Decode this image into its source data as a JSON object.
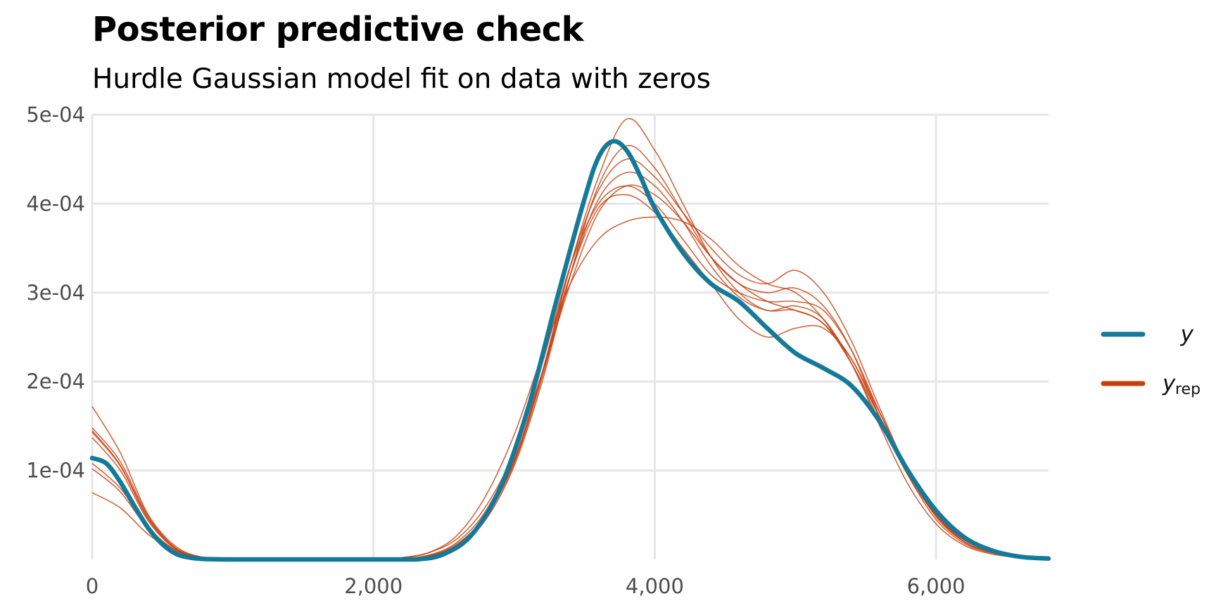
{
  "title": "Posterior predictive check",
  "subtitle": "Hurdle Gaussian model fit on data with zeros",
  "colors": {
    "y": "#157a99",
    "yrep": "#c5400f",
    "grid": "#e6e6e6",
    "tick_text": "#4d4d4d"
  },
  "legend": {
    "position": "right",
    "items": [
      {
        "label": "y",
        "subscript": "",
        "color": "#157a99"
      },
      {
        "label": "y",
        "subscript": "rep",
        "color": "#c5400f"
      }
    ]
  },
  "chart_data": {
    "type": "line",
    "title": "Posterior predictive check",
    "subtitle": "Hurdle Gaussian model fit on data with zeros",
    "xlabel": "",
    "ylabel": "",
    "xlim": [
      0,
      6800
    ],
    "ylim": [
      0,
      0.0005
    ],
    "grid": true,
    "x_ticks": [
      0,
      2000,
      4000,
      6000
    ],
    "x_tick_labels": [
      "0",
      "2,000",
      "4,000",
      "6,000"
    ],
    "y_ticks": [
      0.0001,
      0.0002,
      0.0003,
      0.0004,
      0.0005
    ],
    "y_tick_labels": [
      "1e-04",
      "2e-04",
      "3e-04",
      "4e-04",
      "5e-04"
    ],
    "series": [
      {
        "name": "y",
        "role": "observed",
        "x": [
          0,
          100,
          200,
          300,
          400,
          500,
          600,
          700,
          800,
          1000,
          1500,
          2000,
          2300,
          2500,
          2700,
          2900,
          3100,
          3300,
          3500,
          3600,
          3700,
          3800,
          3900,
          4000,
          4200,
          4400,
          4600,
          4800,
          5000,
          5200,
          5400,
          5600,
          5800,
          6000,
          6200,
          6400,
          6600,
          6800
        ],
        "y": [
          0.000114,
          0.000108,
          8.7e-05,
          6e-05,
          3.5e-05,
          1.7e-05,
          6e-06,
          2e-06,
          5e-07,
          0,
          0,
          0,
          0,
          6e-06,
          2.8e-05,
          8e-05,
          0.00017,
          0.00029,
          0.000405,
          0.000452,
          0.00047,
          0.00046,
          0.00043,
          0.000395,
          0.000345,
          0.00031,
          0.00029,
          0.00026,
          0.000232,
          0.000215,
          0.000195,
          0.000155,
          0.0001,
          5.5e-05,
          2.5e-05,
          1e-05,
          3e-06,
          1e-06
        ]
      },
      {
        "name": "",
        "role": "yrep",
        "x": [
          0,
          200,
          400,
          600,
          800,
          1000,
          2000,
          2200,
          2400,
          2600,
          2800,
          3000,
          3200,
          3400,
          3600,
          3800,
          4000,
          4200,
          4400,
          4600,
          4800,
          5000,
          5200,
          5400,
          5600,
          5800,
          6000,
          6200,
          6400,
          6600,
          6800
        ],
        "y": [
          0.000172,
          0.00012,
          5e-05,
          1.4e-05,
          2e-06,
          0,
          0,
          2e-06,
          8e-06,
          2.4e-05,
          6e-05,
          0.00012,
          0.00021,
          0.00031,
          0.00039,
          0.00042,
          0.00041,
          0.00038,
          0.00034,
          0.00031,
          0.00029,
          0.00028,
          0.000265,
          0.00022,
          0.00016,
          0.0001,
          5e-05,
          2e-05,
          8e-06,
          3e-06,
          1e-06
        ]
      },
      {
        "name": "",
        "role": "yrep",
        "x": [
          0,
          200,
          400,
          600,
          800,
          1000,
          2000,
          2200,
          2400,
          2600,
          2800,
          3000,
          3200,
          3400,
          3600,
          3800,
          4000,
          4200,
          4400,
          4600,
          4800,
          5000,
          5200,
          5400,
          5600,
          5800,
          6000,
          6200,
          6400,
          6600,
          6800
        ],
        "y": [
          0.000148,
          0.00011,
          4.8e-05,
          1.2e-05,
          2e-06,
          0,
          0,
          1e-06,
          5e-06,
          1.8e-05,
          5e-05,
          0.00011,
          0.00021,
          0.00033,
          0.00043,
          0.000495,
          0.00046,
          0.0004,
          0.00034,
          0.0003,
          0.00028,
          0.000285,
          0.00027,
          0.00022,
          0.00015,
          8.5e-05,
          4e-05,
          1.6e-05,
          6e-06,
          2e-06,
          1e-06
        ]
      },
      {
        "name": "",
        "role": "yrep",
        "x": [
          0,
          200,
          400,
          600,
          800,
          1000,
          2000,
          2200,
          2400,
          2600,
          2800,
          3000,
          3200,
          3400,
          3600,
          3800,
          4000,
          4200,
          4400,
          4600,
          4800,
          5000,
          5200,
          5400,
          5600,
          5800,
          6000,
          6200,
          6400,
          6600,
          6800
        ],
        "y": [
          0.000143,
          0.000105,
          4.5e-05,
          1.2e-05,
          2e-06,
          0,
          0,
          1e-06,
          4e-06,
          1.5e-05,
          4.5e-05,
          0.000105,
          0.0002,
          0.00032,
          0.00042,
          0.000465,
          0.00044,
          0.00039,
          0.00034,
          0.00031,
          0.0003,
          0.000305,
          0.000285,
          0.000235,
          0.00016,
          9.5e-05,
          4.5e-05,
          1.8e-05,
          7e-06,
          2e-06,
          1e-06
        ]
      },
      {
        "name": "",
        "role": "yrep",
        "x": [
          0,
          200,
          400,
          600,
          800,
          1000,
          2000,
          2200,
          2400,
          2600,
          2800,
          3000,
          3200,
          3400,
          3600,
          3800,
          4000,
          4200,
          4400,
          4600,
          4800,
          5000,
          5200,
          5400,
          5600,
          5800,
          6000,
          6200,
          6400,
          6600,
          6800
        ],
        "y": [
          0.000137,
          0.0001,
          4.3e-05,
          1.1e-05,
          2e-06,
          0,
          0,
          1e-06,
          4e-06,
          1.6e-05,
          4.8e-05,
          0.00011,
          0.00021,
          0.00033,
          0.000415,
          0.00045,
          0.00043,
          0.00039,
          0.00035,
          0.00032,
          0.00031,
          0.000325,
          0.0003,
          0.000245,
          0.00017,
          0.0001,
          4.8e-05,
          2e-05,
          8e-06,
          3e-06,
          1e-06
        ]
      },
      {
        "name": "",
        "role": "yrep",
        "x": [
          0,
          200,
          400,
          600,
          800,
          1000,
          2000,
          2200,
          2400,
          2600,
          2800,
          3000,
          3200,
          3400,
          3600,
          3800,
          4000,
          4200,
          4400,
          4600,
          4800,
          5000,
          5200,
          5400,
          5600,
          5800,
          6000,
          6200,
          6400,
          6600,
          6800
        ],
        "y": [
          0.000108,
          8e-05,
          3.6e-05,
          1e-05,
          2e-06,
          0,
          0,
          1e-06,
          5e-06,
          2e-05,
          5.5e-05,
          0.00012,
          0.00022,
          0.00033,
          0.0004,
          0.00042,
          0.0004,
          0.00036,
          0.00032,
          0.0003,
          0.00029,
          0.00029,
          0.00028,
          0.000235,
          0.000165,
          0.0001,
          5e-05,
          2.2e-05,
          9e-06,
          3e-06,
          1e-06
        ]
      },
      {
        "name": "",
        "role": "yrep",
        "x": [
          0,
          200,
          400,
          600,
          800,
          1000,
          2000,
          2200,
          2400,
          2600,
          2800,
          3000,
          3200,
          3400,
          3600,
          3800,
          4000,
          4200,
          4400,
          4600,
          4800,
          5000,
          5200,
          5400,
          5600,
          5800,
          6000,
          6200,
          6400,
          6600,
          6800
        ],
        "y": [
          0.000102,
          7.6e-05,
          3.4e-05,
          1e-05,
          2e-06,
          0,
          0,
          1e-06,
          4e-06,
          1.7e-05,
          5e-05,
          0.000112,
          0.00021,
          0.00032,
          0.000395,
          0.00041,
          0.00039,
          0.00035,
          0.00031,
          0.00027,
          0.00025,
          0.00026,
          0.00026,
          0.000225,
          0.00016,
          0.0001,
          5e-05,
          2.2e-05,
          9e-06,
          3e-06,
          1e-06
        ]
      },
      {
        "name": "",
        "role": "yrep",
        "x": [
          0,
          200,
          400,
          600,
          800,
          1000,
          2000,
          2200,
          2400,
          2600,
          2800,
          3000,
          3200,
          3400,
          3600,
          3800,
          4000,
          4200,
          4400,
          4600,
          4800,
          5000,
          5200,
          5400,
          5600,
          5800,
          6000,
          6200,
          6400,
          6600,
          6800
        ],
        "y": [
          7.5e-05,
          5.8e-05,
          2.8e-05,
          9e-06,
          2e-06,
          0,
          0,
          2e-06,
          8e-06,
          2.8e-05,
          7.2e-05,
          0.00014,
          0.00023,
          0.00031,
          0.00036,
          0.00038,
          0.000385,
          0.00038,
          0.00036,
          0.00033,
          0.00031,
          0.0003,
          0.00027,
          0.00022,
          0.000155,
          9.5e-05,
          5e-05,
          2.4e-05,
          1e-05,
          4e-06,
          2e-06
        ]
      },
      {
        "name": "",
        "role": "yrep",
        "x": [
          0,
          200,
          400,
          600,
          800,
          1000,
          2000,
          2200,
          2400,
          2600,
          2800,
          3000,
          3200,
          3400,
          3600,
          3800,
          4000,
          4200,
          4400,
          4600,
          4800,
          5000,
          5200,
          5400,
          5600,
          5800,
          6000,
          6200,
          6400,
          6600,
          6800
        ],
        "y": [
          0.000145,
          0.000106,
          4.6e-05,
          1.2e-05,
          2e-06,
          0,
          0,
          1e-06,
          4e-06,
          1.6e-05,
          4.8e-05,
          0.000108,
          0.000205,
          0.00032,
          0.000405,
          0.000435,
          0.00042,
          0.00038,
          0.00033,
          0.000295,
          0.00028,
          0.00028,
          0.000265,
          0.000225,
          0.000165,
          0.0001,
          5e-05,
          2e-05,
          8e-06,
          3e-06,
          1e-06
        ]
      }
    ]
  }
}
